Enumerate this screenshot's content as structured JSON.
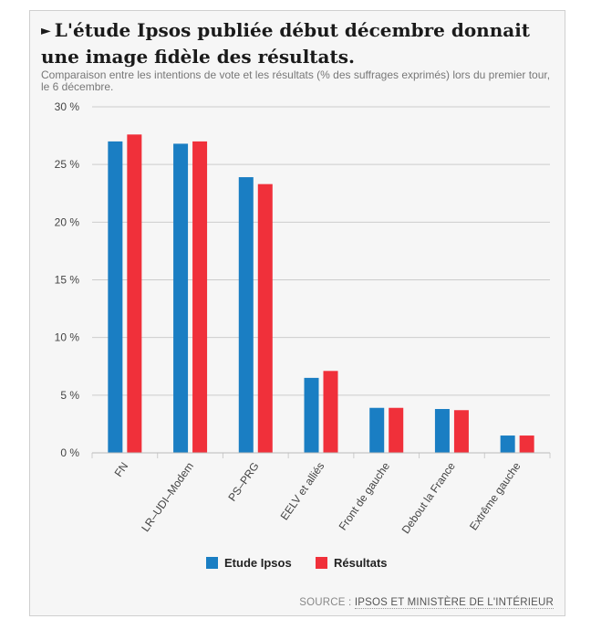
{
  "header": {
    "title": "L'étude Ipsos publiée début décembre donnait une image fidèle des résultats.",
    "subtitle": "Comparaison entre les intentions de vote et les résultats (% des suffrages exprimés) lors du premier tour, le 6 décembre."
  },
  "source": {
    "prefix": "SOURCE :",
    "link": "IPSOS ET MINISTÈRE DE L'INTÉRIEUR"
  },
  "colors": {
    "etude": "#1a7ec3",
    "resultats": "#f0303a",
    "grid": "#cccccc",
    "text": "#444444"
  },
  "chart_data": {
    "type": "bar",
    "categories": [
      "FN",
      "LR–UDI–Modem",
      "PS–PRG",
      "EELV et alliés",
      "Front de gauche",
      "Debout la France",
      "Extrême gauche"
    ],
    "series": [
      {
        "name": "Etude Ipsos",
        "values": [
          27,
          26.8,
          23.9,
          6.5,
          3.9,
          3.8,
          1.5
        ]
      },
      {
        "name": "Résultats",
        "values": [
          27.6,
          27,
          23.3,
          7.1,
          3.9,
          3.7,
          1.5
        ]
      }
    ],
    "yticks": [
      "0 %",
      "5 %",
      "10 %",
      "15 %",
      "20 %",
      "25 %",
      "30 %"
    ],
    "ylim": [
      0,
      30
    ],
    "grid": true,
    "legend_position": "bottom-center"
  }
}
